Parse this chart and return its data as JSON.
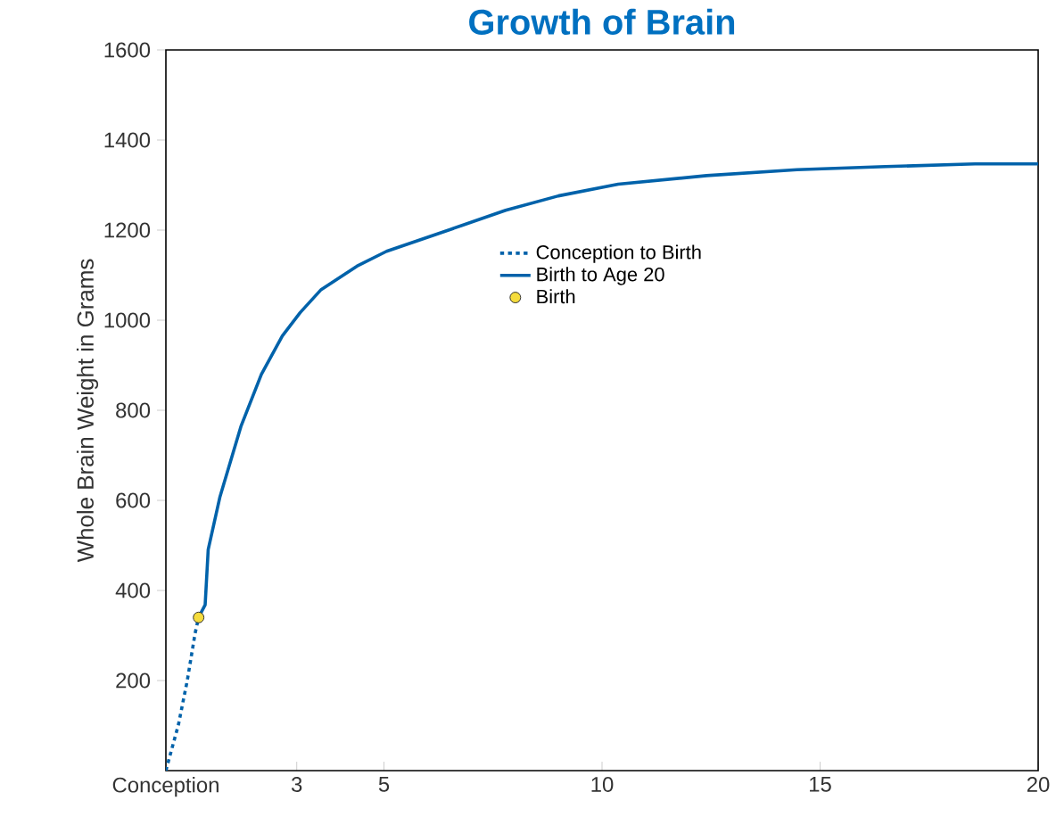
{
  "chart_data": {
    "type": "line",
    "title": "Growth of Brain",
    "ylabel": "Whole Brain Weight in Grams",
    "xlim": [
      0,
      20
    ],
    "ylim": [
      0,
      1600
    ],
    "xticks": [
      {
        "value": 0,
        "label": "Conception"
      },
      3,
      5,
      10,
      15,
      20
    ],
    "yticks": [
      200,
      400,
      600,
      800,
      1000,
      1200,
      1400,
      1600
    ],
    "legend": "top",
    "series": [
      {
        "name": "Conception to Birth",
        "line_style": "dotted",
        "marker": "none",
        "color": "#0062aa",
        "x": [
          0,
          0.29,
          0.49,
          0.67,
          0.75
        ],
        "values": [
          0,
          103,
          200,
          305,
          340
        ]
      },
      {
        "name": "Birth to Age 20",
        "line_style": "solid",
        "marker": "none",
        "color": "#0062aa",
        "x": [
          0.75,
          0.9,
          0.97,
          1.24,
          1.72,
          2.19,
          2.67,
          3.08,
          3.56,
          4.38,
          5.06,
          6.42,
          7.79,
          9.0,
          10.37,
          12.4,
          14.47,
          16.5,
          18.55,
          20
        ],
        "values": [
          340,
          368,
          491,
          608,
          764,
          880,
          965,
          1017,
          1068,
          1120,
          1153,
          1198,
          1244,
          1276,
          1302,
          1321,
          1334,
          1341,
          1347,
          1347
        ]
      },
      {
        "name": "Birth",
        "type": "scatter",
        "marker": "circle",
        "color": "#f5dc3c",
        "x": [
          0.75
        ],
        "values": [
          340
        ]
      }
    ]
  }
}
